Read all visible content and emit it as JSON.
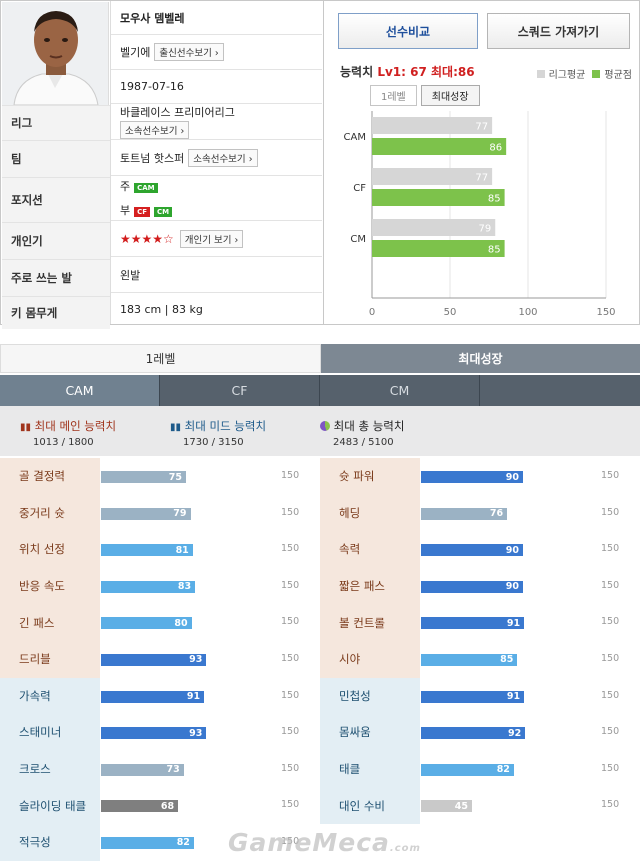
{
  "player": {
    "name": "모우사 뎀벨레",
    "nationality": "벨기에",
    "nat_btn": "출신선수보기",
    "birth": "1987-07-16",
    "league": "바클레이스 프리미어리그",
    "league_btn": "소속선수보기",
    "team": "토트넘 핫스퍼",
    "team_btn": "소속선수보기",
    "pos_main_label": "주",
    "pos_main": [
      "CAM"
    ],
    "pos_sub_label": "부",
    "pos_sub": [
      "CF",
      "CM"
    ],
    "stars": "★★★★☆",
    "popularity_btn": "개인기 보기",
    "foot": "왼발",
    "body": "183 cm | 83 kg"
  },
  "labels": {
    "league": "리그",
    "team": "팀",
    "position": "포지션",
    "popularity": "개인기",
    "foot": "주로 쓰는 발",
    "body": "키 몸무게"
  },
  "buttons": {
    "compare": "선수비교",
    "squad": "스쿼드 가져가기",
    "level1": "1레벨",
    "max_growth": "최대성장"
  },
  "ability": {
    "title_prefix": "능력치",
    "title_value": "Lv1: 67 최대:86",
    "legend_league": "리그평균",
    "legend_avg": "평균점"
  },
  "chart_data": {
    "type": "bar",
    "categories": [
      "CAM",
      "CF",
      "CM"
    ],
    "series": [
      {
        "name": "리그평균",
        "values": [
          77,
          77,
          79
        ],
        "color": "#d6d6d6"
      },
      {
        "name": "평균점",
        "values": [
          86,
          85,
          85
        ],
        "color": "#7dc24b"
      }
    ],
    "xlim": [
      0,
      150
    ],
    "xticks": [
      0,
      50,
      100,
      150
    ]
  },
  "tabs": {
    "level1": "1레벨",
    "max": "최대성장"
  },
  "positions": [
    "CAM",
    "CF",
    "CM"
  ],
  "summary": {
    "main_label": "최대 메인 능력치",
    "main_val": "1013 / 1800",
    "mid_label": "최대 미드 능력치",
    "mid_val": "1730 / 3150",
    "total_label": "최대 총 능력치",
    "total_val": "2483 / 5100"
  },
  "stats_left": [
    {
      "name": "골 결정력",
      "value": 75,
      "color": "#9bb2c4",
      "section": "orange"
    },
    {
      "name": "중거리 슛",
      "value": 79,
      "color": "#9bb2c4",
      "section": "orange"
    },
    {
      "name": "위치 선정",
      "value": 81,
      "color": "#5aaee6",
      "section": "orange"
    },
    {
      "name": "반응 속도",
      "value": 83,
      "color": "#5aaee6",
      "section": "orange"
    },
    {
      "name": "긴 패스",
      "value": 80,
      "color": "#5aaee6",
      "section": "orange"
    },
    {
      "name": "드리블",
      "value": 93,
      "color": "#3a78cf",
      "section": "orange"
    },
    {
      "name": "가속력",
      "value": 91,
      "color": "#3a78cf",
      "section": "blue"
    },
    {
      "name": "스태미너",
      "value": 93,
      "color": "#3a78cf",
      "section": "blue"
    },
    {
      "name": "크로스",
      "value": 73,
      "color": "#9bb2c4",
      "section": "blue"
    },
    {
      "name": "슬라이딩 태클",
      "value": 68,
      "color": "#7f7f7f",
      "section": "blue"
    },
    {
      "name": "적극성",
      "value": 82,
      "color": "#5aaee6",
      "section": "blue"
    }
  ],
  "stats_right": [
    {
      "name": "슛 파워",
      "value": 90,
      "color": "#3a78cf",
      "section": "orange"
    },
    {
      "name": "헤딩",
      "value": 76,
      "color": "#9bb2c4",
      "section": "orange"
    },
    {
      "name": "속력",
      "value": 90,
      "color": "#3a78cf",
      "section": "orange"
    },
    {
      "name": "짧은 패스",
      "value": 90,
      "color": "#3a78cf",
      "section": "orange"
    },
    {
      "name": "볼 컨트롤",
      "value": 91,
      "color": "#3a78cf",
      "section": "orange"
    },
    {
      "name": "시야",
      "value": 85,
      "color": "#5aaee6",
      "section": "orange"
    },
    {
      "name": "민첩성",
      "value": 91,
      "color": "#3a78cf",
      "section": "blue"
    },
    {
      "name": "몸싸움",
      "value": 92,
      "color": "#3a78cf",
      "section": "blue"
    },
    {
      "name": "태클",
      "value": 82,
      "color": "#5aaee6",
      "section": "blue"
    },
    {
      "name": "대인 수비",
      "value": 45,
      "color": "#c9c9c9",
      "section": "blue"
    }
  ],
  "stat_max": 150,
  "watermark": "GameMeca",
  "watermark_suffix": ".com"
}
